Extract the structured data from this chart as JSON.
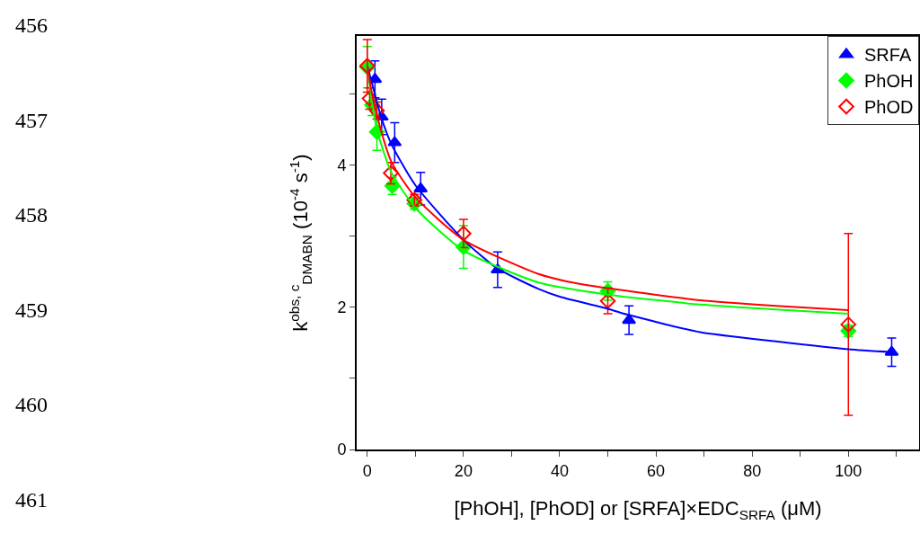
{
  "chart_data": {
    "type": "scatter",
    "xlabel": "[PhOH], [PhOD] or [SRFA]×EDC$_{SRFA}$ (μM)",
    "ylabel": "k$^{obs, c}$$_{DMABN}$ (10$^{-4}$ s$^{-1}$)",
    "annotations": [
      "456",
      "457",
      "458",
      "459",
      "460",
      "461"
    ],
    "xlim": [
      -2.2,
      114.7
    ],
    "ylim": [
      0,
      5.82
    ],
    "xticks": [
      0,
      {
        "value": 10,
        "label": null
      },
      20,
      {
        "value": 30,
        "label": null
      },
      40,
      {
        "value": 50,
        "label": null
      },
      60,
      {
        "value": 70,
        "label": null
      },
      80,
      {
        "value": 90,
        "label": null
      },
      100,
      {
        "value": 110,
        "label": null
      }
    ],
    "yticks": [
      0,
      {
        "value": 1,
        "label": null
      },
      2,
      {
        "value": 3,
        "label": null
      },
      4,
      {
        "value": 5,
        "label": null
      }
    ],
    "grid": false,
    "legend": "top right",
    "series": [
      {
        "name": "SRFA",
        "color": "#0000ff",
        "marker": "triangle",
        "x": [
          1.6,
          3,
          5.7,
          11.1,
          27.1,
          54.4,
          109
        ],
        "values": [
          5.21,
          4.68,
          4.32,
          3.67,
          2.53,
          1.82,
          1.37
        ],
        "errors": [
          0.26,
          0.25,
          0.28,
          0.23,
          0.25,
          0.2,
          0.2
        ]
      },
      {
        "name": "PhOH",
        "color": "#00ff00",
        "marker": "diamond",
        "x": [
          0,
          1,
          2,
          5.2,
          9.8,
          20,
          50,
          100
        ],
        "values": [
          5.38,
          4.85,
          4.47,
          3.71,
          3.46,
          2.85,
          2.23,
          1.67
        ],
        "errors": [
          0.29,
          0.15,
          0.26,
          0.12,
          0.08,
          0.3,
          0.13,
          0.08
        ]
      },
      {
        "name": "PhOD",
        "color": "#ff0000",
        "marker": "diamond-open",
        "x": [
          0,
          0.5,
          2,
          4.9,
          9.8,
          20,
          50,
          100
        ],
        "values": [
          5.4,
          4.94,
          4.77,
          3.89,
          3.51,
          3.04,
          2.09,
          1.76
        ],
        "errors": [
          0.37,
          0.15,
          0.12,
          0.15,
          0.08,
          0.2,
          0.18,
          1.28
        ]
      },
      {
        "type": "line",
        "color": "#0000ff",
        "marker": "none",
        "x": [
          0,
          1,
          2.7,
          5,
          10,
          20,
          27,
          35.6,
          40,
          50,
          54,
          69.2,
          85,
          100,
          109
        ],
        "values": [
          5.4,
          5.15,
          4.72,
          4.3,
          3.72,
          2.95,
          2.55,
          2.26,
          2.15,
          1.98,
          1.9,
          1.65,
          1.52,
          1.41,
          1.37
        ]
      },
      {
        "type": "line",
        "color": "#00ff00",
        "marker": "none",
        "x": [
          0,
          1,
          2,
          5,
          10,
          20,
          35.6,
          50,
          69.2,
          85,
          100
        ],
        "values": [
          5.4,
          4.9,
          4.5,
          3.9,
          3.4,
          2.8,
          2.35,
          2.18,
          2.04,
          1.97,
          1.91
        ]
      },
      {
        "type": "line",
        "color": "#ff0000",
        "marker": "none",
        "x": [
          0,
          1,
          2,
          5,
          10,
          20,
          35.6,
          41.2,
          50,
          69.2,
          85,
          100
        ],
        "values": [
          5.4,
          5.0,
          4.7,
          4.05,
          3.55,
          2.95,
          2.47,
          2.37,
          2.27,
          2.1,
          2.02,
          1.96
        ]
      }
    ]
  }
}
